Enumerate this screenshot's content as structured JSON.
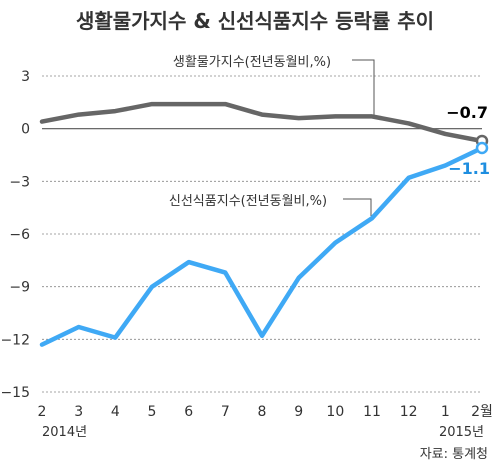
{
  "chart_data": {
    "type": "line",
    "title": "생활물가지수 & 신선식품지수 등락률 추이",
    "x": [
      "2",
      "3",
      "4",
      "5",
      "6",
      "7",
      "8",
      "9",
      "10",
      "11",
      "12",
      "1",
      "2월"
    ],
    "year_labels": [
      "2014년",
      "2015년"
    ],
    "ylim": [
      -15,
      3
    ],
    "yticks": [
      3,
      0,
      -3,
      -6,
      -9,
      -12,
      -15
    ],
    "grid": true,
    "series": [
      {
        "name": "생활물가지수(전년동월비,%)",
        "color": "#666666",
        "values": [
          0.4,
          0.8,
          1.0,
          1.4,
          1.4,
          1.4,
          0.8,
          0.6,
          0.7,
          0.7,
          0.3,
          -0.3,
          -0.7
        ],
        "end_label": "−0.7",
        "end_color": "#222222"
      },
      {
        "name": "신선식품지수(전년동월비,%)",
        "color": "#3fa9f5",
        "values": [
          -12.3,
          -11.3,
          -11.9,
          -9.0,
          -7.6,
          -8.2,
          -11.8,
          -8.5,
          -6.5,
          -5.1,
          -2.8,
          -2.1,
          -1.1
        ],
        "end_label": "−1.1",
        "end_color": "#1e8ee0"
      }
    ]
  },
  "source": "자료: 통계청"
}
